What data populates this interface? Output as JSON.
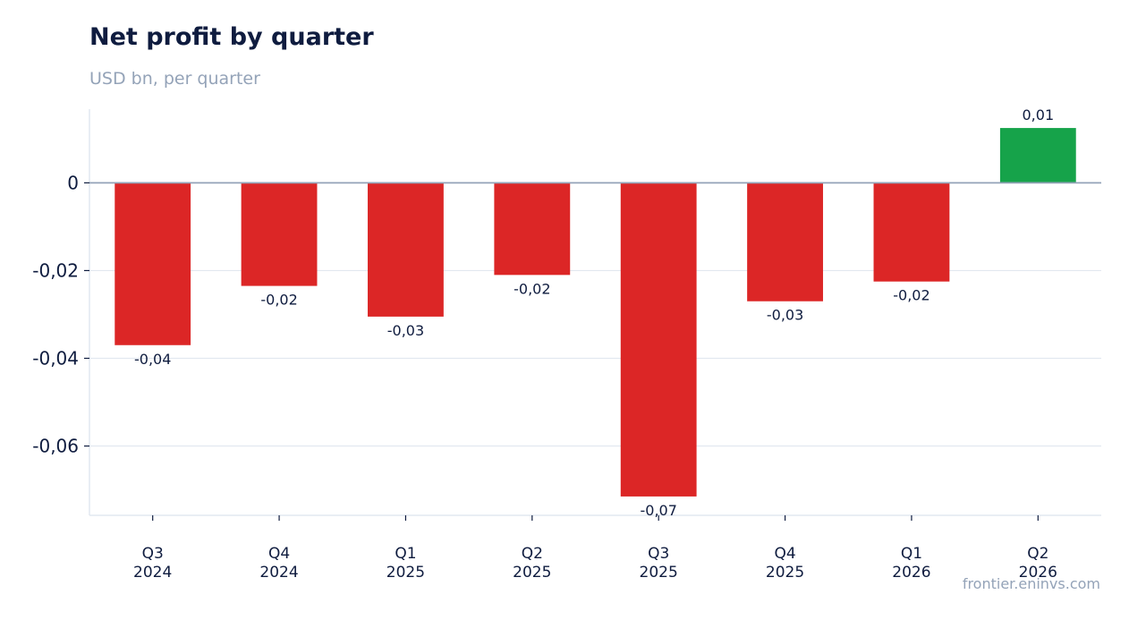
{
  "title": "Net profit by quarter",
  "subtitle": "USD bn, per quarter",
  "watermark": "frontier.eninvs.com",
  "colors": {
    "negative": "#dc2626",
    "positive": "#16a34a",
    "zero_line": "#94a3b8",
    "grid": "#e2e8f0",
    "text": "#0f1c3f",
    "muted": "#94a3b8"
  },
  "chart_data": {
    "type": "bar",
    "title": "Net profit by quarter",
    "subtitle": "USD bn, per quarter",
    "xlabel": "",
    "ylabel": "",
    "categories": [
      [
        "Q3",
        "2024"
      ],
      [
        "Q4",
        "2024"
      ],
      [
        "Q1",
        "2025"
      ],
      [
        "Q2",
        "2025"
      ],
      [
        "Q3",
        "2025"
      ],
      [
        "Q4",
        "2025"
      ],
      [
        "Q1",
        "2026"
      ],
      [
        "Q2",
        "2026"
      ]
    ],
    "values": [
      -0.037,
      -0.0235,
      -0.0305,
      -0.021,
      -0.0715,
      -0.027,
      -0.0225,
      0.0125
    ],
    "data_labels": [
      "-0,04",
      "-0,02",
      "-0,03",
      "-0,02",
      "-0,07",
      "-0,03",
      "-0,02",
      "0,01"
    ],
    "ylim": [
      -0.0758,
      0.0168
    ],
    "yticks": [
      0,
      -0.02,
      -0.04,
      -0.06
    ],
    "ytick_labels": [
      "0",
      "-0,02",
      "-0,04",
      "-0,06"
    ],
    "grid": true,
    "legend": "none"
  }
}
